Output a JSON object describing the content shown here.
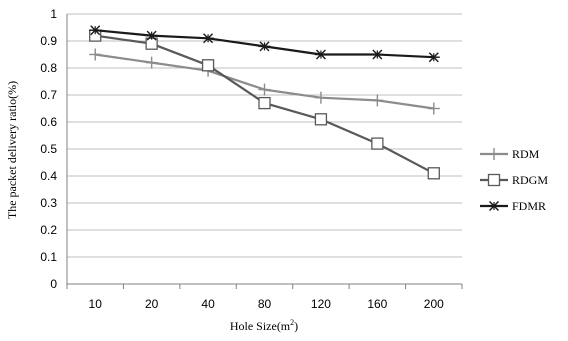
{
  "chart_data": {
    "type": "line",
    "title": "",
    "xlabel": "Hole Size(m²)",
    "xlabel_base": "Hole Size(m",
    "xlabel_sup": "2",
    "xlabel_tail": ")",
    "ylabel": "The packet delivery ratio(%)",
    "categories": [
      "10",
      "20",
      "40",
      "80",
      "120",
      "160",
      "200"
    ],
    "ylim": [
      0,
      1
    ],
    "yticks": [
      "0",
      "0.1",
      "0.2",
      "0.3",
      "0.4",
      "0.5",
      "0.6",
      "0.7",
      "0.8",
      "0.9",
      "1"
    ],
    "grid": true,
    "legend_position": "right",
    "series": [
      {
        "name": "RDM",
        "marker": "plus",
        "color": "#8c8c8c",
        "values": [
          0.85,
          0.82,
          0.79,
          0.72,
          0.69,
          0.68,
          0.65
        ]
      },
      {
        "name": "RDGM",
        "marker": "square",
        "color": "#595959",
        "values": [
          0.92,
          0.89,
          0.81,
          0.67,
          0.61,
          0.52,
          0.41
        ]
      },
      {
        "name": "FDMR",
        "marker": "asterisk",
        "color": "#1a1a1a",
        "values": [
          0.94,
          0.92,
          0.91,
          0.88,
          0.85,
          0.85,
          0.84
        ]
      }
    ]
  }
}
